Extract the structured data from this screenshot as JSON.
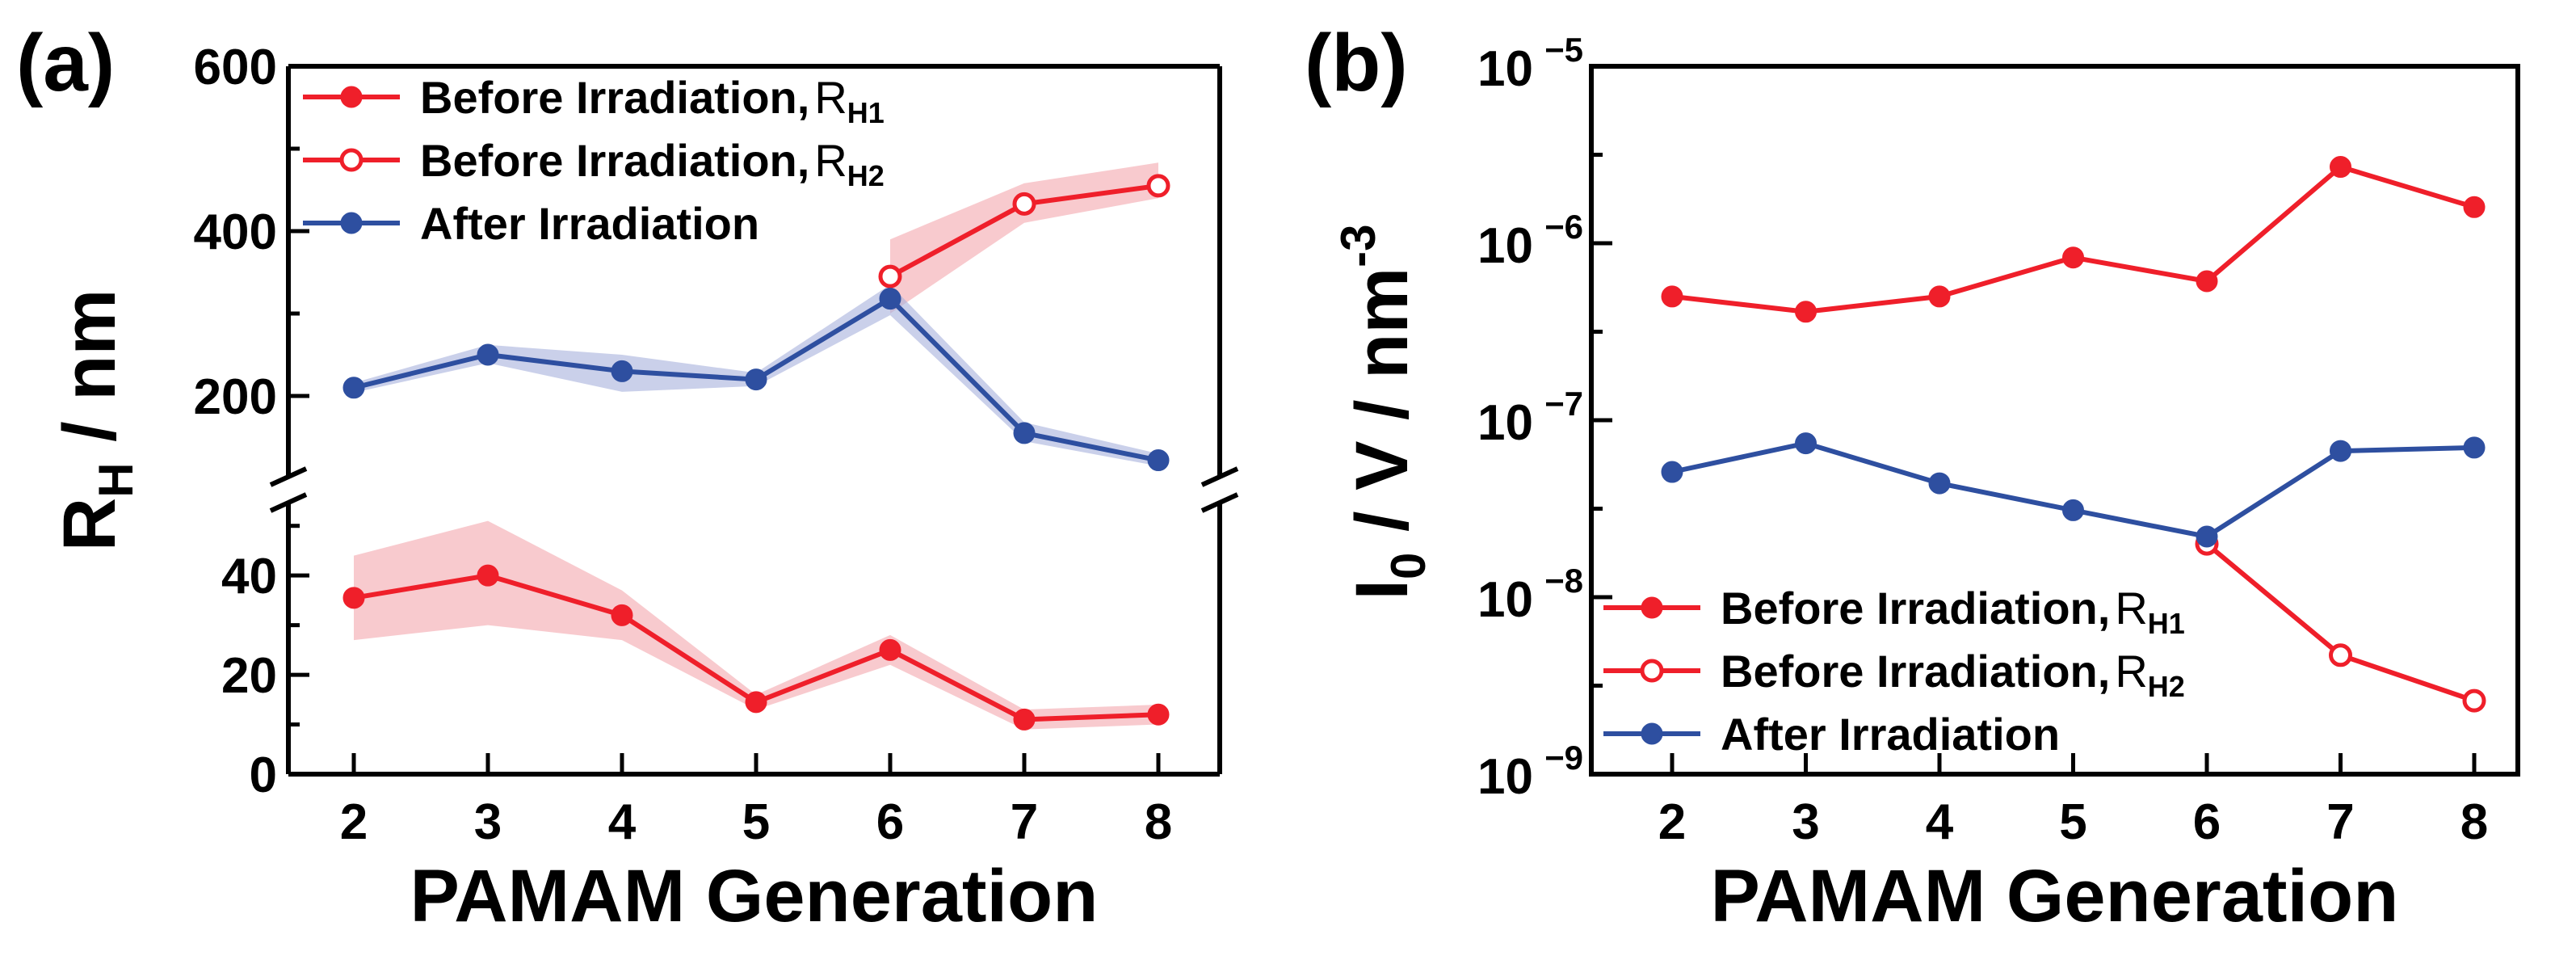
{
  "colors": {
    "red": "#ef1f2a",
    "blue": "#2e4fa0",
    "red_band": "#f4a6ae",
    "blue_band": "#a6b1dc"
  },
  "chart_data": [
    {
      "type": "line",
      "panel_label": "(a)",
      "xlabel": "PAMAM Generation",
      "ylabel": "R",
      "ylabel_sub": "H",
      "ylabel_unit": " / nm",
      "x": [
        2,
        3,
        4,
        5,
        6,
        7,
        8
      ],
      "x_ticks": [
        "2",
        "3",
        "4",
        "5",
        "6",
        "7",
        "8"
      ],
      "broken_axis": true,
      "upper_ylim": [
        100,
        600
      ],
      "upper_y_ticks": [
        "200",
        "400",
        "600"
      ],
      "lower_ylim": [
        0,
        55
      ],
      "lower_y_ticks": [
        "0",
        "20",
        "40"
      ],
      "legend": [
        {
          "label": "Before Irradiation,",
          "sub_base": "R",
          "sub": "H1",
          "color": "red",
          "marker": "filled"
        },
        {
          "label": "Before Irradiation,",
          "sub_base": "R",
          "sub": "H2",
          "color": "red",
          "marker": "open"
        },
        {
          "label": "After Irradiation",
          "sub_base": "",
          "sub": "",
          "color": "blue",
          "marker": "filled"
        }
      ],
      "series": [
        {
          "name": "Before Irradiation, RH1",
          "color": "red",
          "marker": "filled",
          "axis": "lower",
          "x": [
            2,
            3,
            4,
            5,
            6,
            7,
            8
          ],
          "values": [
            35.5,
            40,
            32,
            14.5,
            25,
            11,
            12
          ],
          "band_low": [
            27,
            30,
            27,
            13,
            22,
            9,
            10
          ],
          "band_high": [
            44,
            51,
            37,
            16,
            28,
            13,
            14
          ]
        },
        {
          "name": "Before Irradiation, RH2",
          "color": "red",
          "marker": "open",
          "axis": "upper",
          "x": [
            6,
            7,
            8
          ],
          "values": [
            345,
            433,
            455
          ],
          "band_low": [
            300,
            410,
            440
          ],
          "band_high": [
            390,
            458,
            483
          ]
        },
        {
          "name": "After Irradiation",
          "color": "blue",
          "marker": "filled",
          "axis": "upper",
          "x": [
            2,
            3,
            4,
            5,
            6,
            7,
            8
          ],
          "values": [
            210,
            250,
            230,
            220,
            318,
            155,
            122
          ],
          "band_low": [
            204,
            240,
            205,
            212,
            298,
            145,
            115
          ],
          "band_high": [
            216,
            262,
            250,
            228,
            335,
            168,
            130
          ]
        }
      ]
    },
    {
      "type": "line",
      "panel_label": "(b)",
      "xlabel": "PAMAM Generation",
      "ylabel_base": "I",
      "ylabel_sub": "0",
      "ylabel_mid": " / V / nm",
      "ylabel_sup": "-3",
      "x": [
        2,
        3,
        4,
        5,
        6,
        7,
        8
      ],
      "x_ticks": [
        "2",
        "3",
        "4",
        "5",
        "6",
        "7",
        "8"
      ],
      "yscale": "log",
      "ylim": [
        1e-09,
        1e-05
      ],
      "y_ticks": [
        {
          "base": "10",
          "exp": "−5"
        },
        {
          "base": "10",
          "exp": "−6"
        },
        {
          "base": "10",
          "exp": "−7"
        },
        {
          "base": "10",
          "exp": "−8"
        },
        {
          "base": "10",
          "exp": "−9"
        }
      ],
      "legend": [
        {
          "label": "Before Irradiation,",
          "sub_base": "R",
          "sub": "H1",
          "color": "red",
          "marker": "filled"
        },
        {
          "label": "Before Irradiation,",
          "sub_base": "R",
          "sub": "H2",
          "color": "red",
          "marker": "open"
        },
        {
          "label": "After Irradiation",
          "sub_base": "",
          "sub": "",
          "color": "blue",
          "marker": "filled"
        }
      ],
      "series": [
        {
          "name": "Before Irradiation, RH1",
          "color": "red",
          "marker": "filled",
          "x": [
            2,
            3,
            4,
            5,
            6,
            7,
            8
          ],
          "values": [
            5e-07,
            4.1e-07,
            5e-07,
            8.3e-07,
            6.1e-07,
            2.7e-06,
            1.6e-06
          ]
        },
        {
          "name": "Before Irradiation, RH2",
          "color": "red",
          "marker": "open",
          "x": [
            6,
            7,
            8
          ],
          "values": [
            2e-08,
            4.7e-09,
            2.6e-09
          ]
        },
        {
          "name": "After Irradiation",
          "color": "blue",
          "marker": "filled",
          "x": [
            2,
            3,
            4,
            5,
            6,
            7,
            8
          ],
          "values": [
            5.1e-08,
            7.4e-08,
            4.4e-08,
            3.1e-08,
            2.2e-08,
            6.7e-08,
            7e-08
          ]
        }
      ]
    }
  ]
}
